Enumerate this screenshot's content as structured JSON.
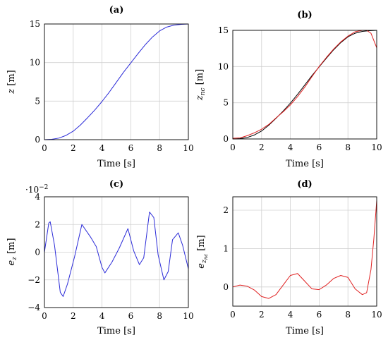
{
  "chart_data": [
    {
      "id": "a",
      "type": "line",
      "title": "(a)",
      "xlabel": "Time [s]",
      "ylabel": "z [m]",
      "xlim": [
        0,
        10
      ],
      "ylim": [
        0,
        15
      ],
      "xticks": [
        0,
        2,
        4,
        6,
        8,
        10
      ],
      "yticks": [
        0,
        5,
        10,
        15
      ],
      "grid": true,
      "series": [
        {
          "color": "#2b2bd8",
          "x": [
            0,
            0.5,
            1,
            1.5,
            2,
            2.5,
            3,
            3.5,
            4,
            4.5,
            5,
            5.5,
            6,
            6.5,
            7,
            7.5,
            8,
            8.5,
            9,
            9.5,
            10
          ],
          "y": [
            0,
            0.05,
            0.2,
            0.55,
            1.1,
            1.9,
            2.85,
            3.85,
            4.95,
            6.15,
            7.45,
            8.75,
            9.95,
            11.15,
            12.3,
            13.3,
            14.1,
            14.6,
            14.85,
            14.95,
            15.0
          ]
        }
      ]
    },
    {
      "id": "b",
      "type": "line",
      "title": "(b)",
      "xlabel": "Time [s]",
      "ylabel": "z_nc [m]",
      "xlim": [
        0,
        10
      ],
      "ylim": [
        0,
        15
      ],
      "xticks": [
        0,
        2,
        4,
        6,
        8,
        10
      ],
      "yticks": [
        0,
        5,
        10,
        15
      ],
      "grid": true,
      "series": [
        {
          "color": "#000000",
          "x": [
            0,
            0.5,
            1,
            1.5,
            2,
            2.5,
            3,
            3.5,
            4,
            4.5,
            5,
            5.5,
            6,
            6.5,
            7,
            7.5,
            8,
            8.5,
            9,
            9.5,
            10
          ],
          "y": [
            0,
            0.05,
            0.2,
            0.55,
            1.1,
            1.9,
            2.85,
            3.85,
            4.95,
            6.15,
            7.45,
            8.75,
            9.95,
            11.15,
            12.3,
            13.3,
            14.1,
            14.6,
            14.85,
            14.95,
            15.0
          ]
        },
        {
          "color": "#e02020",
          "x": [
            0,
            0.5,
            1,
            1.5,
            2,
            2.5,
            3,
            3.5,
            4,
            4.5,
            5,
            5.5,
            6,
            6.5,
            7,
            7.5,
            8,
            8.5,
            9,
            9.3,
            9.6,
            10
          ],
          "y": [
            0.1,
            0.15,
            0.45,
            0.85,
            1.35,
            2.0,
            2.9,
            3.75,
            4.7,
            5.85,
            7.15,
            8.6,
            10.0,
            11.25,
            12.4,
            13.4,
            14.2,
            14.8,
            15.0,
            15.0,
            14.6,
            12.6
          ]
        }
      ]
    },
    {
      "id": "c",
      "type": "line",
      "title": "(c)",
      "xlabel": "Time [s]",
      "ylabel": "e_z [m]",
      "scale_label": "·10^−2",
      "xlim": [
        0,
        10
      ],
      "ylim": [
        -4,
        4
      ],
      "xticks": [
        0,
        2,
        4,
        6,
        8,
        10
      ],
      "yticks": [
        -4,
        -2,
        0,
        2,
        4
      ],
      "grid": true,
      "series": [
        {
          "color": "#2b2bd8",
          "x": [
            0,
            0.3,
            0.4,
            0.7,
            1.1,
            1.3,
            1.6,
            2.1,
            2.6,
            3.2,
            3.6,
            4.0,
            4.2,
            4.7,
            5.2,
            5.8,
            6.2,
            6.6,
            6.9,
            7.3,
            7.6,
            7.9,
            8.3,
            8.6,
            8.9,
            9.3,
            9.6,
            10
          ],
          "y": [
            0,
            2.1,
            2.2,
            0.5,
            -2.9,
            -3.2,
            -2.3,
            -0.3,
            2.0,
            1.1,
            0.4,
            -1.1,
            -1.5,
            -0.7,
            0.3,
            1.7,
            0.1,
            -0.9,
            -0.4,
            2.9,
            2.5,
            -0.2,
            -2.0,
            -1.4,
            0.9,
            1.4,
            0.5,
            -1.2
          ]
        }
      ]
    },
    {
      "id": "d",
      "type": "line",
      "title": "(d)",
      "xlabel": "Time [s]",
      "ylabel": "e_znc [m]",
      "xlim": [
        0,
        10
      ],
      "ylim": [
        -0.5,
        2.35
      ],
      "xticks": [
        0,
        2,
        4,
        6,
        8,
        10
      ],
      "yticks": [
        0,
        1,
        2
      ],
      "grid": true,
      "series": [
        {
          "color": "#e02020",
          "x": [
            0,
            0.5,
            1,
            1.5,
            2,
            2.5,
            3,
            3.5,
            4,
            4.5,
            5,
            5.5,
            6,
            6.5,
            7,
            7.5,
            8,
            8.5,
            9,
            9.3,
            9.6,
            9.8,
            10
          ],
          "y": [
            0,
            0.05,
            0.02,
            -0.08,
            -0.25,
            -0.3,
            -0.2,
            0.05,
            0.3,
            0.35,
            0.15,
            -0.05,
            -0.07,
            0.05,
            0.22,
            0.3,
            0.25,
            -0.05,
            -0.2,
            -0.15,
            0.45,
            1.25,
            2.25
          ]
        }
      ]
    }
  ]
}
